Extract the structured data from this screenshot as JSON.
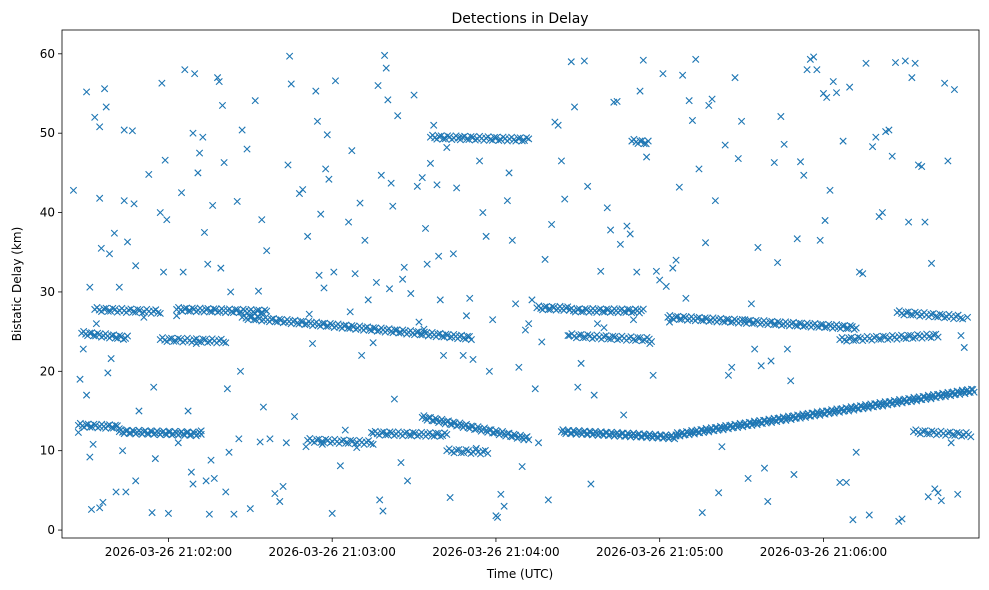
{
  "chart_data": {
    "type": "scatter",
    "title": "Detections in Delay",
    "xlabel": "Time (UTC)",
    "ylabel": "Bistatic Delay (km)",
    "marker": "x",
    "color": "#1f77b4",
    "xlim_minutes_after_21_00": [
      1.35,
      6.95
    ],
    "ylim": [
      -1,
      63
    ],
    "x_ticks": [
      {
        "value": 2,
        "label": "2026-03-26 21:02:00"
      },
      {
        "value": 3,
        "label": "2026-03-26 21:03:00"
      },
      {
        "value": 4,
        "label": "2026-03-26 21:04:00"
      },
      {
        "value": 5,
        "label": "2026-03-26 21:05:00"
      },
      {
        "value": 6,
        "label": "2026-03-26 21:06:00"
      }
    ],
    "y_ticks": [
      0,
      10,
      20,
      30,
      40,
      50,
      60
    ],
    "x_units": "minutes after 2026-03-26 21:00:00 UTC",
    "tracks": [
      {
        "name": "track-upper-a",
        "start": 1.47,
        "end": 1.75,
        "step": 0.012,
        "y_start": 24.8,
        "y_end": 24.2
      },
      {
        "name": "track-upper-b",
        "start": 1.55,
        "end": 1.95,
        "step": 0.014,
        "y_start": 27.8,
        "y_end": 27.5
      },
      {
        "name": "track-upper-c",
        "start": 1.95,
        "end": 2.35,
        "step": 0.014,
        "y_start": 24.0,
        "y_end": 23.8
      },
      {
        "name": "track-upper-d",
        "start": 2.05,
        "end": 2.6,
        "step": 0.012,
        "y_start": 27.8,
        "y_end": 27.5
      },
      {
        "name": "track-upper-e",
        "start": 2.45,
        "end": 3.85,
        "step": 0.012,
        "y_start": 26.8,
        "y_end": 24.2
      },
      {
        "name": "track-upper-f",
        "start": 3.6,
        "end": 4.2,
        "step": 0.013,
        "y_start": 49.5,
        "y_end": 49.2
      },
      {
        "name": "track-upper-g",
        "start": 4.25,
        "end": 4.45,
        "step": 0.012,
        "y_start": 28.0,
        "y_end": 27.9
      },
      {
        "name": "track-upper-h",
        "start": 4.45,
        "end": 4.9,
        "step": 0.012,
        "y_start": 27.7,
        "y_end": 27.6
      },
      {
        "name": "track-upper-i",
        "start": 4.45,
        "end": 4.95,
        "step": 0.014,
        "y_start": 24.5,
        "y_end": 24.0
      },
      {
        "name": "track-upper-j",
        "start": 4.83,
        "end": 4.93,
        "step": 0.012,
        "y_start": 49.0,
        "y_end": 48.8
      },
      {
        "name": "track-upper-k",
        "start": 5.05,
        "end": 6.2,
        "step": 0.012,
        "y_start": 26.8,
        "y_end": 25.5
      },
      {
        "name": "track-upper-l",
        "start": 6.1,
        "end": 6.7,
        "step": 0.014,
        "y_start": 24.0,
        "y_end": 24.5
      },
      {
        "name": "track-upper-m",
        "start": 6.45,
        "end": 6.85,
        "step": 0.014,
        "y_start": 27.4,
        "y_end": 26.8
      },
      {
        "name": "track-lower-a",
        "start": 1.45,
        "end": 1.7,
        "step": 0.012,
        "y_start": 13.2,
        "y_end": 13.0
      },
      {
        "name": "track-lower-b",
        "start": 1.7,
        "end": 2.2,
        "step": 0.01,
        "y_start": 12.4,
        "y_end": 12.1
      },
      {
        "name": "track-lower-c",
        "start": 2.85,
        "end": 3.25,
        "step": 0.014,
        "y_start": 11.3,
        "y_end": 11.0
      },
      {
        "name": "track-lower-d",
        "start": 3.25,
        "end": 3.7,
        "step": 0.013,
        "y_start": 12.2,
        "y_end": 12.0
      },
      {
        "name": "track-lower-e",
        "start": 3.55,
        "end": 4.2,
        "step": 0.01,
        "y_start": 14.2,
        "y_end": 11.5
      },
      {
        "name": "track-lower-f",
        "start": 4.4,
        "end": 5.1,
        "step": 0.009,
        "y_start": 12.4,
        "y_end": 11.7
      },
      {
        "name": "track-lower-g",
        "start": 5.1,
        "end": 6.92,
        "step": 0.008,
        "y_start": 12.0,
        "y_end": 17.6
      },
      {
        "name": "track-lower-h",
        "start": 3.7,
        "end": 3.95,
        "step": 0.015,
        "y_start": 10.0,
        "y_end": 9.8
      },
      {
        "name": "track-lower-i",
        "start": 6.55,
        "end": 6.9,
        "step": 0.014,
        "y_start": 12.4,
        "y_end": 12.0
      }
    ],
    "scattered_points": [
      [
        1.42,
        42.8
      ],
      [
        1.45,
        12.3
      ],
      [
        1.46,
        19.0
      ],
      [
        1.48,
        22.8
      ],
      [
        1.5,
        55.2
      ],
      [
        1.5,
        17.0
      ],
      [
        1.52,
        30.6
      ],
      [
        1.52,
        9.2
      ],
      [
        1.53,
        2.6
      ],
      [
        1.54,
        10.8
      ],
      [
        1.55,
        52.0
      ],
      [
        1.56,
        26.0
      ],
      [
        1.58,
        50.8
      ],
      [
        1.58,
        41.8
      ],
      [
        1.58,
        2.8
      ],
      [
        1.59,
        35.5
      ],
      [
        1.6,
        3.5
      ],
      [
        1.61,
        55.6
      ],
      [
        1.62,
        53.3
      ],
      [
        1.63,
        19.8
      ],
      [
        1.64,
        34.8
      ],
      [
        1.65,
        21.6
      ],
      [
        1.67,
        37.4
      ],
      [
        1.68,
        4.8
      ],
      [
        1.7,
        30.6
      ],
      [
        1.72,
        10.0
      ],
      [
        1.73,
        50.4
      ],
      [
        1.73,
        41.5
      ],
      [
        1.74,
        4.8
      ],
      [
        1.75,
        36.3
      ],
      [
        1.78,
        50.3
      ],
      [
        1.79,
        41.1
      ],
      [
        1.8,
        33.3
      ],
      [
        1.8,
        6.2
      ],
      [
        1.82,
        15.0
      ],
      [
        1.85,
        26.8
      ],
      [
        1.88,
        44.8
      ],
      [
        1.9,
        2.2
      ],
      [
        1.91,
        18.0
      ],
      [
        1.92,
        9.0
      ],
      [
        1.95,
        40.0
      ],
      [
        1.96,
        56.3
      ],
      [
        1.97,
        32.5
      ],
      [
        1.98,
        46.6
      ],
      [
        1.99,
        39.1
      ],
      [
        2.0,
        2.1
      ],
      [
        2.05,
        27.0
      ],
      [
        2.06,
        11.0
      ],
      [
        2.08,
        42.5
      ],
      [
        2.09,
        32.5
      ],
      [
        2.1,
        58.0
      ],
      [
        2.12,
        15.0
      ],
      [
        2.14,
        7.3
      ],
      [
        2.15,
        5.8
      ],
      [
        2.15,
        50.0
      ],
      [
        2.16,
        57.5
      ],
      [
        2.17,
        23.5
      ],
      [
        2.18,
        45.0
      ],
      [
        2.19,
        47.5
      ],
      [
        2.2,
        12.5
      ],
      [
        2.21,
        49.5
      ],
      [
        2.22,
        37.5
      ],
      [
        2.23,
        6.2
      ],
      [
        2.24,
        33.5
      ],
      [
        2.25,
        2.0
      ],
      [
        2.26,
        8.8
      ],
      [
        2.27,
        40.9
      ],
      [
        2.28,
        6.5
      ],
      [
        2.3,
        57.0
      ],
      [
        2.31,
        56.5
      ],
      [
        2.32,
        33.0
      ],
      [
        2.33,
        53.5
      ],
      [
        2.34,
        46.3
      ],
      [
        2.35,
        4.8
      ],
      [
        2.36,
        17.8
      ],
      [
        2.37,
        9.8
      ],
      [
        2.38,
        30.0
      ],
      [
        2.4,
        2.0
      ],
      [
        2.42,
        41.4
      ],
      [
        2.43,
        11.5
      ],
      [
        2.44,
        20.0
      ],
      [
        2.45,
        50.4
      ],
      [
        2.48,
        48.0
      ],
      [
        2.5,
        2.7
      ],
      [
        2.53,
        54.1
      ],
      [
        2.55,
        30.1
      ],
      [
        2.56,
        11.1
      ],
      [
        2.57,
        39.1
      ],
      [
        2.58,
        15.5
      ],
      [
        2.6,
        35.2
      ],
      [
        2.62,
        11.5
      ],
      [
        2.65,
        4.6
      ],
      [
        2.68,
        3.6
      ],
      [
        2.7,
        5.5
      ],
      [
        2.72,
        11.0
      ],
      [
        2.73,
        46.0
      ],
      [
        2.74,
        59.7
      ],
      [
        2.75,
        56.2
      ],
      [
        2.77,
        14.3
      ],
      [
        2.8,
        42.4
      ],
      [
        2.82,
        42.9
      ],
      [
        2.84,
        10.5
      ],
      [
        2.85,
        37.0
      ],
      [
        2.86,
        27.2
      ],
      [
        2.88,
        23.5
      ],
      [
        2.9,
        55.3
      ],
      [
        2.91,
        51.5
      ],
      [
        2.92,
        32.1
      ],
      [
        2.93,
        39.8
      ],
      [
        2.94,
        10.8
      ],
      [
        2.95,
        30.5
      ],
      [
        2.96,
        45.5
      ],
      [
        2.97,
        49.8
      ],
      [
        2.98,
        44.2
      ],
      [
        3.0,
        2.1
      ],
      [
        3.01,
        32.5
      ],
      [
        3.02,
        56.6
      ],
      [
        3.05,
        8.1
      ],
      [
        3.08,
        12.6
      ],
      [
        3.1,
        38.8
      ],
      [
        3.11,
        27.5
      ],
      [
        3.12,
        47.8
      ],
      [
        3.14,
        32.3
      ],
      [
        3.15,
        10.4
      ],
      [
        3.17,
        41.2
      ],
      [
        3.18,
        22.0
      ],
      [
        3.2,
        36.5
      ],
      [
        3.22,
        29.0
      ],
      [
        3.24,
        12.3
      ],
      [
        3.25,
        23.6
      ],
      [
        3.27,
        31.2
      ],
      [
        3.28,
        56.0
      ],
      [
        3.29,
        3.8
      ],
      [
        3.3,
        44.7
      ],
      [
        3.31,
        2.4
      ],
      [
        3.32,
        59.8
      ],
      [
        3.33,
        58.2
      ],
      [
        3.34,
        54.2
      ],
      [
        3.35,
        30.4
      ],
      [
        3.36,
        43.7
      ],
      [
        3.37,
        40.8
      ],
      [
        3.38,
        16.5
      ],
      [
        3.4,
        52.2
      ],
      [
        3.42,
        8.5
      ],
      [
        3.43,
        31.6
      ],
      [
        3.44,
        33.1
      ],
      [
        3.46,
        6.2
      ],
      [
        3.48,
        29.8
      ],
      [
        3.5,
        54.8
      ],
      [
        3.52,
        43.3
      ],
      [
        3.53,
        26.2
      ],
      [
        3.55,
        44.4
      ],
      [
        3.56,
        25.3
      ],
      [
        3.57,
        38.0
      ],
      [
        3.58,
        33.5
      ],
      [
        3.6,
        46.2
      ],
      [
        3.62,
        51.0
      ],
      [
        3.64,
        43.5
      ],
      [
        3.65,
        34.5
      ],
      [
        3.66,
        29.0
      ],
      [
        3.68,
        22.0
      ],
      [
        3.7,
        48.2
      ],
      [
        3.72,
        4.1
      ],
      [
        3.74,
        34.8
      ],
      [
        3.76,
        43.1
      ],
      [
        3.78,
        49.5
      ],
      [
        3.8,
        22.0
      ],
      [
        3.82,
        27.0
      ],
      [
        3.84,
        29.2
      ],
      [
        3.86,
        21.5
      ],
      [
        3.88,
        10.3
      ],
      [
        3.9,
        46.5
      ],
      [
        3.92,
        40.0
      ],
      [
        3.94,
        37.0
      ],
      [
        3.96,
        20.0
      ],
      [
        3.98,
        26.5
      ],
      [
        4.0,
        1.8
      ],
      [
        4.01,
        1.6
      ],
      [
        4.03,
        4.5
      ],
      [
        4.05,
        3.0
      ],
      [
        4.07,
        41.5
      ],
      [
        4.08,
        45.0
      ],
      [
        4.1,
        36.5
      ],
      [
        4.12,
        28.5
      ],
      [
        4.14,
        20.5
      ],
      [
        4.16,
        8.0
      ],
      [
        4.18,
        25.2
      ],
      [
        4.2,
        26.0
      ],
      [
        4.22,
        29.0
      ],
      [
        4.24,
        17.8
      ],
      [
        4.26,
        11.0
      ],
      [
        4.28,
        23.7
      ],
      [
        4.3,
        34.1
      ],
      [
        4.32,
        3.8
      ],
      [
        4.34,
        38.5
      ],
      [
        4.36,
        51.4
      ],
      [
        4.38,
        51.0
      ],
      [
        4.4,
        46.5
      ],
      [
        4.42,
        41.7
      ],
      [
        4.44,
        24.5
      ],
      [
        4.46,
        59.0
      ],
      [
        4.48,
        53.3
      ],
      [
        4.5,
        18.0
      ],
      [
        4.52,
        21.0
      ],
      [
        4.54,
        59.1
      ],
      [
        4.56,
        43.3
      ],
      [
        4.58,
        5.8
      ],
      [
        4.6,
        17.0
      ],
      [
        4.62,
        26.0
      ],
      [
        4.64,
        32.6
      ],
      [
        4.66,
        25.5
      ],
      [
        4.68,
        40.6
      ],
      [
        4.7,
        37.8
      ],
      [
        4.72,
        53.9
      ],
      [
        4.74,
        54.0
      ],
      [
        4.76,
        36.0
      ],
      [
        4.78,
        14.5
      ],
      [
        4.8,
        38.3
      ],
      [
        4.82,
        37.3
      ],
      [
        4.84,
        26.5
      ],
      [
        4.86,
        32.5
      ],
      [
        4.88,
        55.3
      ],
      [
        4.9,
        59.2
      ],
      [
        4.92,
        47.0
      ],
      [
        4.94,
        23.5
      ],
      [
        4.96,
        19.5
      ],
      [
        4.98,
        32.6
      ],
      [
        5.0,
        31.5
      ],
      [
        5.02,
        57.5
      ],
      [
        5.04,
        30.7
      ],
      [
        5.06,
        26.2
      ],
      [
        5.08,
        33.0
      ],
      [
        5.1,
        34.0
      ],
      [
        5.12,
        43.2
      ],
      [
        5.14,
        57.3
      ],
      [
        5.16,
        29.2
      ],
      [
        5.18,
        54.1
      ],
      [
        5.2,
        51.6
      ],
      [
        5.22,
        59.3
      ],
      [
        5.24,
        45.5
      ],
      [
        5.26,
        2.2
      ],
      [
        5.28,
        36.2
      ],
      [
        5.3,
        53.5
      ],
      [
        5.32,
        54.3
      ],
      [
        5.34,
        41.5
      ],
      [
        5.36,
        4.7
      ],
      [
        5.38,
        10.5
      ],
      [
        5.4,
        48.5
      ],
      [
        5.42,
        19.5
      ],
      [
        5.44,
        20.5
      ],
      [
        5.46,
        57.0
      ],
      [
        5.48,
        46.8
      ],
      [
        5.5,
        51.5
      ],
      [
        5.52,
        26.5
      ],
      [
        5.54,
        6.5
      ],
      [
        5.56,
        28.5
      ],
      [
        5.58,
        22.8
      ],
      [
        5.6,
        35.6
      ],
      [
        5.62,
        20.7
      ],
      [
        5.64,
        7.8
      ],
      [
        5.66,
        3.6
      ],
      [
        5.68,
        21.3
      ],
      [
        5.7,
        46.3
      ],
      [
        5.72,
        33.7
      ],
      [
        5.74,
        52.1
      ],
      [
        5.76,
        48.6
      ],
      [
        5.78,
        22.8
      ],
      [
        5.8,
        18.8
      ],
      [
        5.82,
        7.0
      ],
      [
        5.84,
        36.7
      ],
      [
        5.86,
        46.4
      ],
      [
        5.88,
        44.7
      ],
      [
        5.9,
        58.0
      ],
      [
        5.92,
        59.3
      ],
      [
        5.94,
        59.6
      ],
      [
        5.96,
        58.0
      ],
      [
        5.98,
        36.5
      ],
      [
        6.0,
        55.0
      ],
      [
        6.01,
        39.0
      ],
      [
        6.02,
        54.5
      ],
      [
        6.04,
        42.8
      ],
      [
        6.06,
        56.5
      ],
      [
        6.08,
        55.1
      ],
      [
        6.1,
        6.0
      ],
      [
        6.12,
        49.0
      ],
      [
        6.14,
        6.0
      ],
      [
        6.16,
        55.8
      ],
      [
        6.18,
        1.3
      ],
      [
        6.2,
        9.8
      ],
      [
        6.22,
        32.5
      ],
      [
        6.24,
        32.3
      ],
      [
        6.26,
        58.8
      ],
      [
        6.28,
        1.9
      ],
      [
        6.3,
        48.3
      ],
      [
        6.32,
        49.5
      ],
      [
        6.34,
        39.5
      ],
      [
        6.36,
        40.0
      ],
      [
        6.38,
        50.2
      ],
      [
        6.4,
        50.4
      ],
      [
        6.42,
        47.1
      ],
      [
        6.44,
        58.9
      ],
      [
        6.46,
        1.1
      ],
      [
        6.48,
        1.4
      ],
      [
        6.5,
        59.1
      ],
      [
        6.52,
        38.8
      ],
      [
        6.54,
        57.0
      ],
      [
        6.56,
        58.8
      ],
      [
        6.58,
        46.0
      ],
      [
        6.6,
        45.8
      ],
      [
        6.62,
        38.8
      ],
      [
        6.64,
        4.2
      ],
      [
        6.66,
        33.6
      ],
      [
        6.68,
        5.2
      ],
      [
        6.7,
        4.7
      ],
      [
        6.72,
        3.7
      ],
      [
        6.74,
        56.3
      ],
      [
        6.76,
        46.5
      ],
      [
        6.78,
        11.0
      ],
      [
        6.8,
        55.5
      ],
      [
        6.82,
        4.5
      ],
      [
        6.84,
        24.5
      ],
      [
        6.86,
        23.0
      ],
      [
        6.88,
        26.8
      ]
    ]
  }
}
